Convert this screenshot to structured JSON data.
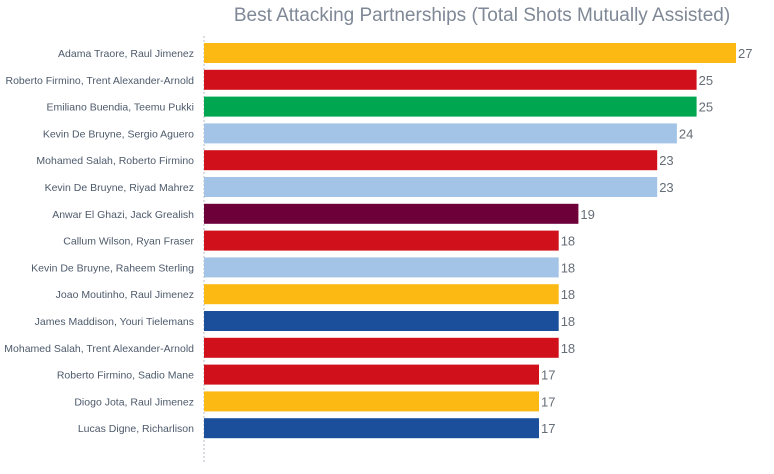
{
  "chart_data": {
    "type": "bar",
    "orientation": "horizontal",
    "title": "Best Attacking Partnerships (Total Shots Mutually Assisted)",
    "xlabel": "",
    "ylabel": "",
    "xlim": [
      0,
      27
    ],
    "grid": false,
    "legend": "none",
    "categories": [
      "Adama Traore, Raul Jimenez",
      "Roberto Firmino, Trent Alexander-Arnold",
      "Emiliano Buendia, Teemu Pukki",
      "Kevin De Bruyne, Sergio Aguero",
      "Mohamed Salah, Roberto Firmino",
      "Kevin De Bruyne, Riyad Mahrez",
      "Anwar El Ghazi, Jack Grealish",
      "Callum Wilson, Ryan Fraser",
      "Kevin De Bruyne, Raheem Sterling",
      "Joao Moutinho, Raul Jimenez",
      "James Maddison, Youri Tielemans",
      "Mohamed Salah, Trent Alexander-Arnold",
      "Roberto Firmino, Sadio Mane",
      "Diogo Jota, Raul Jimenez",
      "Lucas Digne, Richarlison"
    ],
    "values": [
      27,
      25,
      25,
      24,
      23,
      23,
      19,
      18,
      18,
      18,
      18,
      18,
      17,
      17,
      17
    ],
    "colors": [
      "#fdb913",
      "#d0111b",
      "#00a650",
      "#a3c4e6",
      "#d0111b",
      "#a3c4e6",
      "#6d0038",
      "#d0111b",
      "#a3c4e6",
      "#fdb913",
      "#1b4f9c",
      "#d0111b",
      "#d0111b",
      "#fdb913",
      "#1b4f9c"
    ]
  }
}
